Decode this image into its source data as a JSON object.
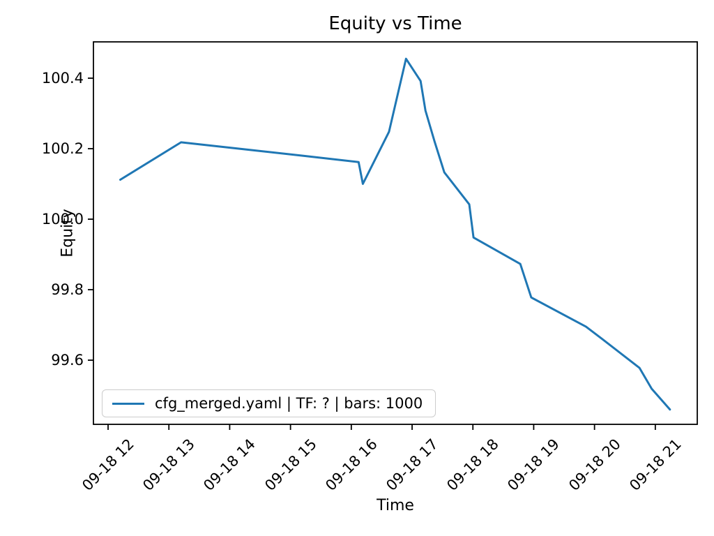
{
  "page": {
    "background": "#ffffff",
    "text_color": "#000000",
    "spine_color": "#000000"
  },
  "chart_data": {
    "type": "line",
    "title": "Equity vs Time",
    "xlabel": "Time",
    "ylabel": "Equity",
    "grid": false,
    "legend_position": "lower left",
    "x_axis_unit": "hours after 09-18 12:00",
    "xlim": [
      -0.241,
      9.69
    ],
    "ylim": [
      99.418,
      100.503
    ],
    "x_ticks": [
      {
        "t": 0,
        "label": "09-18 12"
      },
      {
        "t": 1,
        "label": "09-18 13"
      },
      {
        "t": 2,
        "label": "09-18 14"
      },
      {
        "t": 3,
        "label": "09-18 15"
      },
      {
        "t": 4,
        "label": "09-18 16"
      },
      {
        "t": 5,
        "label": "09-18 17"
      },
      {
        "t": 6,
        "label": "09-18 18"
      },
      {
        "t": 7,
        "label": "09-18 19"
      },
      {
        "t": 8,
        "label": "09-18 20"
      },
      {
        "t": 9,
        "label": "09-18 21"
      }
    ],
    "y_ticks": [
      {
        "v": 99.6,
        "label": "99.6"
      },
      {
        "v": 99.8,
        "label": "99.8"
      },
      {
        "v": 100.0,
        "label": "100.0"
      },
      {
        "v": 100.2,
        "label": "100.2"
      },
      {
        "v": 100.4,
        "label": "100.4"
      }
    ],
    "series": [
      {
        "name": "cfg_merged.yaml | TF: ? | bars: 1000",
        "color": "#1f77b4",
        "points": [
          [
            0.2,
            100.112
          ],
          [
            1.2,
            100.218
          ],
          [
            2.2,
            100.199
          ],
          [
            3.2,
            100.18
          ],
          [
            4.12,
            100.162
          ],
          [
            4.19,
            100.1
          ],
          [
            4.62,
            100.248
          ],
          [
            4.9,
            100.455
          ],
          [
            5.14,
            100.392
          ],
          [
            5.22,
            100.308
          ],
          [
            5.37,
            100.22
          ],
          [
            5.53,
            100.133
          ],
          [
            5.94,
            100.042
          ],
          [
            6.01,
            99.948
          ],
          [
            6.78,
            99.873
          ],
          [
            6.96,
            99.778
          ],
          [
            7.86,
            99.695
          ],
          [
            8.12,
            99.661
          ],
          [
            8.74,
            99.578
          ],
          [
            8.94,
            99.519
          ],
          [
            9.24,
            99.46
          ]
        ]
      }
    ]
  }
}
